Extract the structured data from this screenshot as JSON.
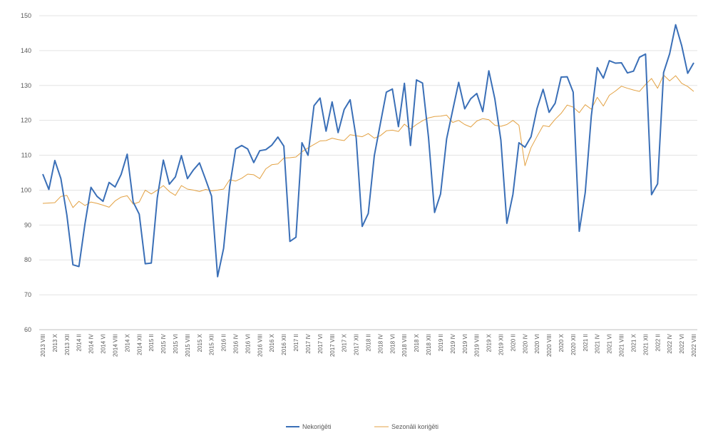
{
  "chart_data": {
    "type": "line",
    "title": "",
    "xlabel": "",
    "ylabel": "",
    "ylim": [
      60,
      150
    ],
    "y_ticks": [
      60,
      70,
      80,
      90,
      100,
      110,
      120,
      130,
      140,
      150
    ],
    "grid": true,
    "legend_position": "bottom",
    "x": [
      "2013 VIII",
      "2013 IX",
      "2013 X",
      "2013 XI",
      "2013 XII",
      "2014 I",
      "2014 II",
      "2014 III",
      "2014 IV",
      "2014 V",
      "2014 VI",
      "2014 VII",
      "2014 VIII",
      "2014 IX",
      "2014 X",
      "2014 XI",
      "2014 XII",
      "2015 I",
      "2015 II",
      "2015 III",
      "2015 IV",
      "2015 V",
      "2015 VI",
      "2015 VII",
      "2015 VIII",
      "2015 IX",
      "2015 X",
      "2015 XI",
      "2015 XII",
      "2016 I",
      "2016 II",
      "2016 III",
      "2016 IV",
      "2016 V",
      "2016 VI",
      "2016 VII",
      "2016 VIII",
      "2016 IX",
      "2016 X",
      "2016 XI",
      "2016 XII",
      "2017 I",
      "2017 II",
      "2017 III",
      "2017 IV",
      "2017 V",
      "2017 VI",
      "2017 VII",
      "2017 VIII",
      "2017 IX",
      "2017 X",
      "2017 XI",
      "2017 XII",
      "2018 I",
      "2018 II",
      "2018 III",
      "2018 IV",
      "2018 V",
      "2018 VI",
      "2018 VII",
      "2018 VIII",
      "2018 IX",
      "2018 X",
      "2018 XI",
      "2018 XII",
      "2019 I",
      "2019 II",
      "2019 III",
      "2019 IV",
      "2019 V",
      "2019 VI",
      "2019 VII",
      "2019 VIII",
      "2019 IX",
      "2019 X",
      "2019 XI",
      "2019 XII",
      "2020 I",
      "2020 II",
      "2020 III",
      "2020 IV",
      "2020 V",
      "2020 VI",
      "2020 VII",
      "2020 VIII",
      "2020 IX",
      "2020 X",
      "2020 XI",
      "2020 XII",
      "2021 I",
      "2021 II",
      "2021 III",
      "2021 IV",
      "2021 V",
      "2021 VI",
      "2021 VII",
      "2021 VIII",
      "2021 IX",
      "2021 X",
      "2021 XI",
      "2021 XII",
      "2022 I",
      "2022 II",
      "2022 III",
      "2022 IV",
      "2022 V",
      "2022 VI",
      "2022 VII",
      "2022 VIII"
    ],
    "tick_labels": [
      "2013 VIII",
      "2013 X",
      "2013 XII",
      "2014 II",
      "2014 IV",
      "2014 VI",
      "2014 VIII",
      "2014 X",
      "2014 XII",
      "2015 II",
      "2015 IV",
      "2015 VI",
      "2015 VIII",
      "2015 X",
      "2015 XII",
      "2016 II",
      "2016 IV",
      "2016 VI",
      "2016 VIII",
      "2016 X",
      "2016 XII",
      "2017 II",
      "2017 IV",
      "2017 VI",
      "2017 VIII",
      "2017 X",
      "2017 XII",
      "2018 II",
      "2018 IV",
      "2018 VI",
      "2018 VIII",
      "2018 X",
      "2018 XII",
      "2019 II",
      "2019 IV",
      "2019 VI",
      "2019 VIII",
      "2019 X",
      "2019 XII",
      "2020 II",
      "2020 IV",
      "2020 VI",
      "2020 VIII",
      "2020 X",
      "2020 XII",
      "2021 II",
      "2021 IV",
      "2021 VI",
      "2021 VIII",
      "2021 X",
      "2021 XII",
      "2022 II",
      "2022 IV",
      "2022 VI",
      "2022 VIII"
    ],
    "series": [
      {
        "name": "Nekoriģēti",
        "color": "#3a6fb7",
        "values": [
          104.6,
          100.2,
          108.5,
          103.3,
          92.8,
          78.6,
          78.1,
          90.4,
          100.8,
          98.2,
          96.8,
          102.2,
          100.9,
          104.5,
          110.3,
          96.6,
          93.1,
          78.9,
          79.1,
          97.8,
          108.6,
          101.7,
          103.8,
          109.9,
          103.3,
          105.8,
          107.8,
          103.1,
          98.3,
          75.2,
          83.3,
          101.0,
          111.8,
          112.8,
          111.8,
          107.9,
          111.3,
          111.6,
          112.9,
          115.2,
          112.6,
          85.3,
          86.5,
          113.6,
          110.0,
          124.2,
          126.4,
          116.9,
          125.3,
          116.5,
          123.1,
          125.9,
          114.9,
          89.6,
          93.3,
          109.9,
          119.0,
          128.1,
          129.0,
          118.2,
          130.6,
          112.8,
          131.6,
          130.7,
          115.1,
          93.6,
          98.9,
          114.7,
          122.9,
          130.9,
          123.3,
          126.2,
          127.7,
          122.5,
          134.2,
          126.2,
          114.3,
          90.5,
          98.8,
          113.6,
          112.3,
          115.3,
          123.4,
          128.9,
          122.3,
          124.9,
          132.4,
          132.5,
          128.1,
          88.2,
          99.3,
          121.2,
          135.1,
          132.1,
          137.1,
          136.4,
          136.5,
          133.6,
          134.1,
          138.1,
          139.0,
          98.7,
          101.8,
          133.7,
          139.1,
          147.4,
          141.4,
          133.5,
          136.5
        ]
      },
      {
        "name": "Sezonāli koriģēti",
        "color": "#e3a244",
        "values": [
          96.2,
          96.3,
          96.4,
          98.2,
          98.5,
          95.0,
          96.8,
          95.6,
          96.6,
          96.2,
          95.7,
          95.1,
          96.9,
          98.0,
          98.4,
          96.0,
          96.6,
          100.0,
          98.9,
          100.0,
          101.3,
          99.6,
          98.5,
          101.3,
          100.3,
          100.0,
          99.6,
          100.2,
          99.8,
          100.0,
          100.3,
          103.0,
          102.6,
          103.4,
          104.6,
          104.4,
          103.3,
          106.1,
          107.3,
          107.5,
          109.2,
          109.3,
          109.5,
          111.0,
          112.1,
          113.1,
          114.1,
          114.2,
          114.9,
          114.5,
          114.2,
          115.9,
          115.6,
          115.3,
          116.2,
          114.9,
          115.6,
          117.0,
          117.2,
          116.8,
          118.9,
          117.5,
          118.8,
          119.9,
          120.7,
          121.1,
          121.2,
          121.5,
          119.4,
          120.0,
          118.8,
          118.1,
          119.8,
          120.5,
          120.2,
          118.6,
          118.3,
          118.8,
          120.0,
          118.6,
          107.0,
          112.2,
          115.4,
          118.5,
          118.2,
          120.3,
          122.0,
          124.4,
          123.8,
          122.2,
          124.5,
          123.2,
          126.6,
          124.1,
          127.2,
          128.4,
          129.8,
          129.2,
          128.7,
          128.3,
          130.3,
          132.0,
          129.2,
          133.0,
          131.3,
          132.8,
          130.6,
          129.7,
          128.3
        ]
      }
    ]
  }
}
